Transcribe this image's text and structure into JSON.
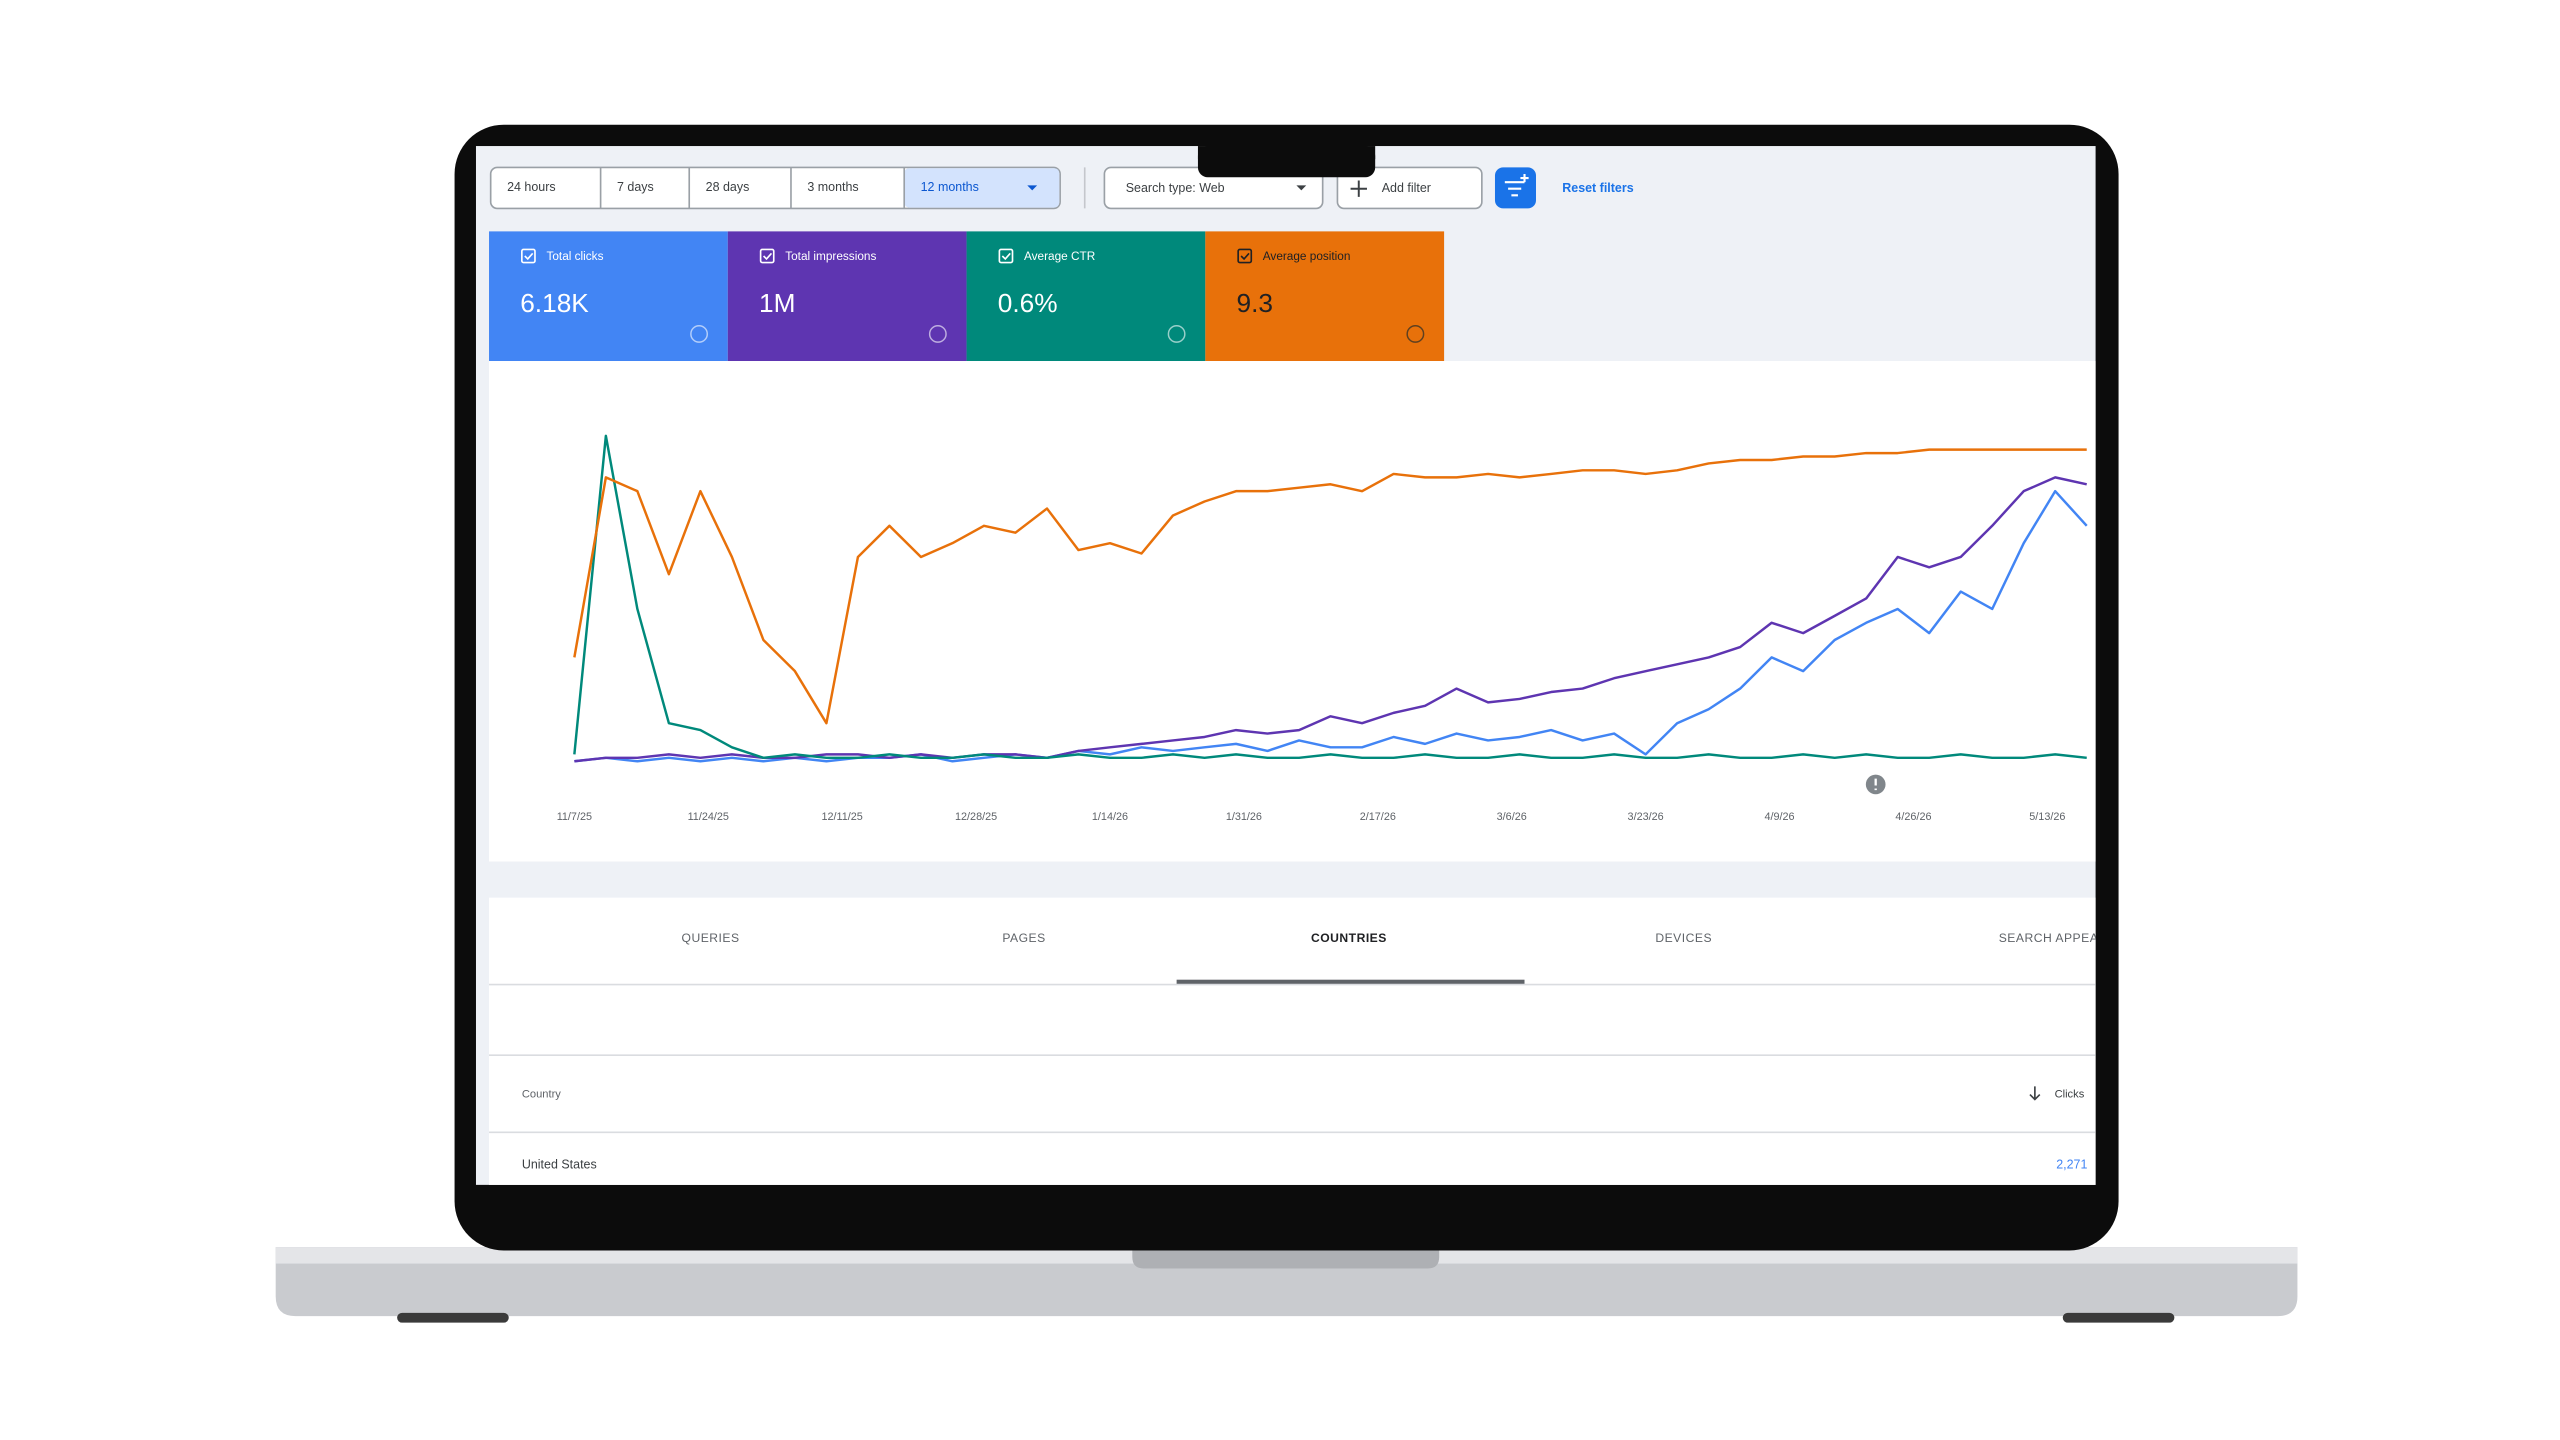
{
  "toolbar": {
    "ranges": [
      "24 hours",
      "7 days",
      "28 days",
      "3 months",
      "12 months"
    ],
    "search_type": "Search type: Web",
    "add_filter": "Add filter",
    "reset": "Reset filters"
  },
  "chart_data": {
    "type": "line",
    "x": [
      0,
      4,
      8,
      12,
      16,
      20,
      24,
      28,
      32,
      36,
      40,
      44,
      48,
      52,
      56,
      60,
      64,
      68,
      72,
      76,
      80,
      84,
      88,
      92,
      96,
      100,
      104,
      108,
      112,
      116,
      120,
      124,
      128,
      132,
      136,
      140,
      144,
      148,
      152,
      156,
      160,
      164,
      168,
      172,
      176,
      180,
      184,
      188,
      192
    ],
    "xlim": [
      0,
      193
    ],
    "ylim": [
      0,
      100
    ],
    "xticks": [
      {
        "value": 0,
        "label": "11/7/25"
      },
      {
        "value": 17,
        "label": "11/24/25"
      },
      {
        "value": 34,
        "label": "12/11/25"
      },
      {
        "value": 51,
        "label": "12/28/25"
      },
      {
        "value": 68,
        "label": "1/14/26"
      },
      {
        "value": 85,
        "label": "1/31/26"
      },
      {
        "value": 102,
        "label": "2/17/26"
      },
      {
        "value": 119,
        "label": "3/6/26"
      },
      {
        "value": 136,
        "label": "3/23/26"
      },
      {
        "value": 153,
        "label": "4/9/26"
      },
      {
        "value": 170,
        "label": "4/26/26"
      },
      {
        "value": 187,
        "label": "5/13/26"
      }
    ],
    "series": [
      {
        "name": "Total clicks",
        "total": "6.18K",
        "color": "#4285f4",
        "values": [
          1,
          2,
          1,
          2,
          1,
          2,
          1,
          2,
          1,
          2,
          2,
          3,
          1,
          2,
          3,
          2,
          4,
          3,
          5,
          4,
          5,
          6,
          4,
          7,
          5,
          5,
          8,
          6,
          9,
          7,
          8,
          10,
          7,
          9,
          3,
          12,
          16,
          22,
          31,
          27,
          36,
          41,
          45,
          38,
          50,
          45,
          64,
          79,
          69
        ]
      },
      {
        "name": "Total impressions",
        "total": "1M",
        "color": "#5e35b1",
        "values": [
          1,
          2,
          2,
          3,
          2,
          3,
          2,
          2,
          3,
          3,
          2,
          3,
          2,
          3,
          3,
          2,
          4,
          5,
          6,
          7,
          8,
          10,
          9,
          10,
          14,
          12,
          15,
          17,
          22,
          18,
          19,
          21,
          22,
          25,
          27,
          29,
          31,
          34,
          41,
          38,
          43,
          48,
          60,
          57,
          60,
          69,
          79,
          83,
          81
        ]
      },
      {
        "name": "Average CTR",
        "total": "0.6%",
        "color": "#00897b",
        "values": [
          3,
          95,
          45,
          12,
          10,
          5,
          2,
          3,
          2,
          2,
          3,
          2,
          2,
          3,
          2,
          2,
          3,
          2,
          2,
          3,
          2,
          3,
          2,
          2,
          3,
          2,
          2,
          3,
          2,
          2,
          3,
          2,
          2,
          3,
          2,
          2,
          3,
          2,
          2,
          3,
          2,
          3,
          2,
          2,
          3,
          2,
          2,
          3,
          2
        ]
      },
      {
        "name": "Average position",
        "total": "9.3",
        "color": "#e8710a",
        "values": [
          31,
          83,
          79,
          55,
          79,
          60,
          36,
          27,
          12,
          60,
          69,
          60,
          64,
          69,
          67,
          74,
          62,
          64,
          61,
          72,
          76,
          79,
          79,
          80,
          81,
          79,
          84,
          83,
          83,
          84,
          83,
          84,
          85,
          85,
          84,
          85,
          87,
          88,
          88,
          89,
          89,
          90,
          90,
          91,
          91,
          91,
          91,
          91,
          91
        ]
      }
    ]
  },
  "tabs": [
    "QUERIES",
    "PAGES",
    "COUNTRIES",
    "DEVICES",
    "SEARCH APPEARANCE"
  ],
  "table": {
    "columns": [
      "Country",
      "Clicks"
    ],
    "rows": [
      [
        "United States",
        "2,271"
      ]
    ]
  }
}
